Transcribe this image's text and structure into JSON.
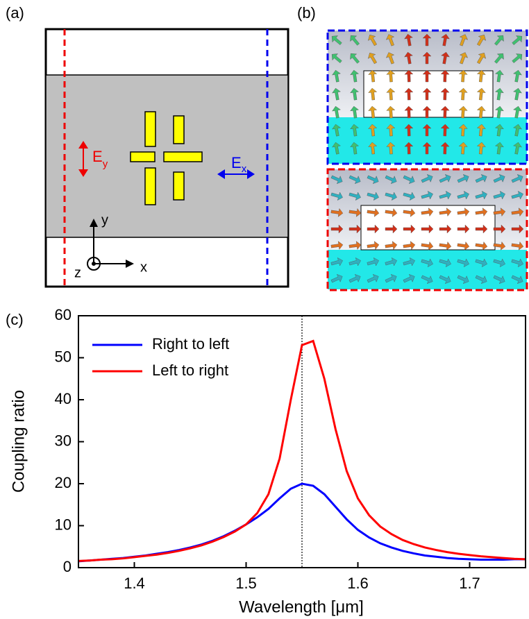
{
  "panel_labels": [
    "(a)",
    "(b)",
    "(c)"
  ],
  "diagram": {
    "ey": {
      "main": "E",
      "sub": "y"
    },
    "ex": {
      "main": "E",
      "sub": "x"
    },
    "axis_y": "y",
    "axis_x": "x",
    "axis_z": "z"
  },
  "chart_data": {
    "type": "line",
    "x": [
      1.35,
      1.36,
      1.37,
      1.38,
      1.39,
      1.4,
      1.41,
      1.42,
      1.43,
      1.44,
      1.45,
      1.46,
      1.47,
      1.48,
      1.49,
      1.5,
      1.51,
      1.52,
      1.53,
      1.54,
      1.55,
      1.56,
      1.57,
      1.58,
      1.59,
      1.6,
      1.61,
      1.62,
      1.63,
      1.64,
      1.65,
      1.66,
      1.67,
      1.68,
      1.69,
      1.7,
      1.71,
      1.72,
      1.73,
      1.74,
      1.75
    ],
    "series": [
      {
        "name": "Right to left",
        "color": "#0000ff",
        "values": [
          1.5,
          1.7,
          1.9,
          2.1,
          2.3,
          2.6,
          2.9,
          3.3,
          3.7,
          4.2,
          4.8,
          5.5,
          6.4,
          7.5,
          8.8,
          10.3,
          12,
          14,
          16.5,
          18.8,
          20,
          19.5,
          17.5,
          14.5,
          11.5,
          9,
          7.2,
          5.8,
          4.8,
          4.0,
          3.4,
          2.9,
          2.6,
          2.3,
          2.1,
          2.0,
          1.9,
          1.9,
          1.9,
          2.0,
          2.0
        ]
      },
      {
        "name": "Left to right",
        "color": "#ff0000",
        "values": [
          1.6,
          1.7,
          1.9,
          2.0,
          2.2,
          2.5,
          2.8,
          3.1,
          3.5,
          4.0,
          4.6,
          5.3,
          6.2,
          7.3,
          8.6,
          10.3,
          13,
          17.5,
          26,
          40,
          53,
          54,
          45,
          33,
          23,
          16.5,
          12.5,
          9.8,
          8.0,
          6.6,
          5.6,
          4.8,
          4.2,
          3.7,
          3.3,
          3.0,
          2.7,
          2.5,
          2.3,
          2.1,
          2.0
        ]
      }
    ],
    "xlim": [
      1.35,
      1.75
    ],
    "ylim": [
      0,
      60
    ],
    "xticks": [
      1.4,
      1.5,
      1.6,
      1.7
    ],
    "yticks": [
      0,
      10,
      20,
      30,
      40,
      50,
      60
    ],
    "xlabel": "Wavelength [μm]",
    "ylabel": "Coupling ratio",
    "vline": 1.55,
    "legend": "upper-left"
  }
}
